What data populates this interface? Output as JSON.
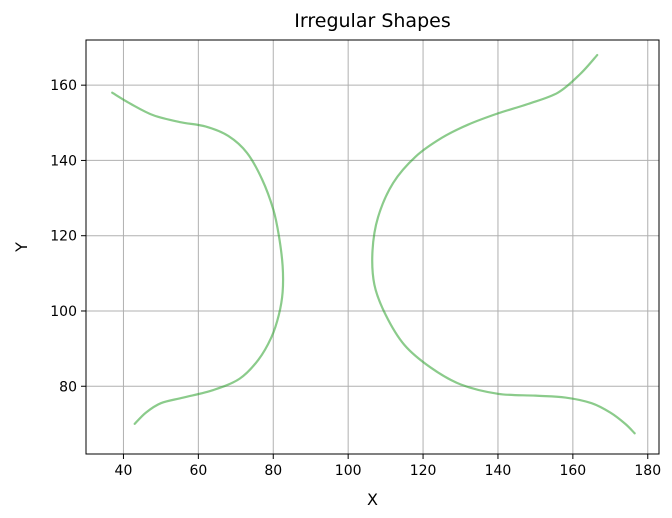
{
  "chart_data": {
    "type": "line",
    "title": "Irregular Shapes",
    "xlabel": "X",
    "ylabel": "Y",
    "xlim": [
      30,
      183
    ],
    "ylim": [
      62,
      172
    ],
    "xticks": [
      40,
      60,
      80,
      100,
      120,
      140,
      160,
      180
    ],
    "yticks": [
      80,
      100,
      120,
      140,
      160
    ],
    "grid": true,
    "color": "#2ca02c",
    "series": [
      {
        "x": [
          37,
          42,
          48,
          55,
          62,
          68,
          73,
          77,
          80,
          81.5,
          82.5,
          82.5,
          81.5,
          79.5,
          76,
          71,
          64,
          56,
          50,
          46,
          43
        ],
        "y": [
          158,
          155,
          152,
          150.2,
          149,
          146.5,
          142,
          135,
          127,
          120,
          112,
          105,
          99,
          93,
          87,
          82,
          79,
          77,
          75.5,
          73,
          70
        ]
      },
      {
        "x": [
          166.5,
          162,
          156,
          148,
          140,
          132,
          125,
          118,
          112,
          108,
          106.5,
          107,
          110,
          115,
          122,
          130,
          140,
          150,
          158,
          165,
          170,
          174,
          176.5
        ],
        "y": [
          168,
          163,
          158,
          155,
          152.5,
          149.5,
          146,
          141,
          134,
          125,
          116,
          107,
          99,
          91,
          85,
          80.5,
          78,
          77.5,
          77,
          75.5,
          73,
          70,
          67.5
        ]
      }
    ]
  }
}
